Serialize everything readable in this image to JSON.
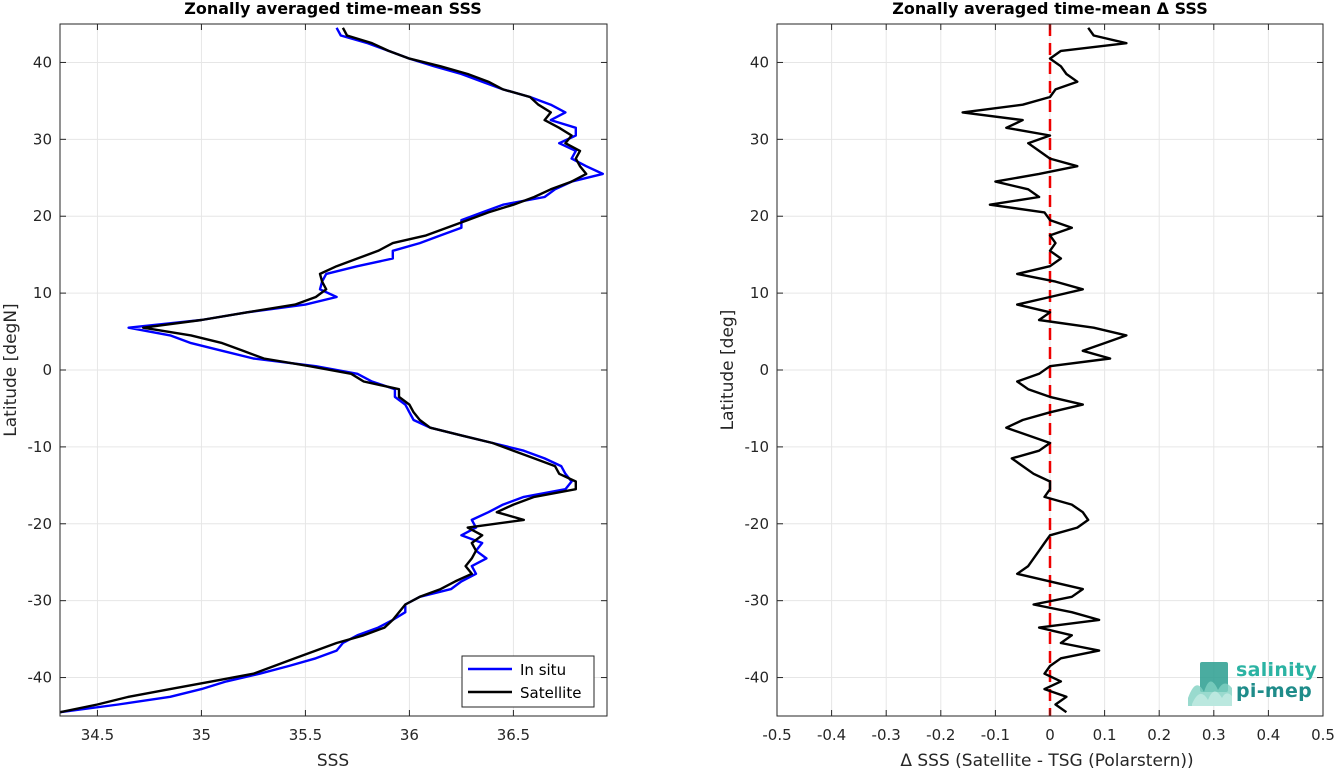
{
  "chart_data": [
    {
      "type": "line",
      "title": "Zonally averaged time-mean SSS",
      "xlabel": "SSS",
      "ylabel": "Latitude [degN]",
      "xlim": [
        34.32,
        36.95
      ],
      "ylim": [
        -45,
        45
      ],
      "x_ticks": [
        34.5,
        35,
        35.5,
        36,
        36.5
      ],
      "x_tick_labels": [
        "34.5",
        "35",
        "35.5",
        "36",
        "36.5"
      ],
      "y_ticks": [
        -40,
        -30,
        -20,
        -10,
        0,
        10,
        20,
        30,
        40
      ],
      "y_tick_labels": [
        "-40",
        "-30",
        "-20",
        "-10",
        "0",
        "10",
        "20",
        "30",
        "40"
      ],
      "grid": true,
      "legend_position": "bottom-right",
      "colors": {
        "In situ": "#0000ff",
        "Satellite": "#000000"
      },
      "series": [
        {
          "name": "In situ",
          "lat": [
            44.5,
            43.5,
            42.5,
            41.5,
            40.5,
            39.5,
            38.5,
            37.5,
            36.5,
            35.5,
            34.5,
            33.5,
            32.5,
            31.5,
            30.5,
            29.5,
            28.5,
            27.5,
            26.5,
            25.5,
            24.5,
            23.5,
            22.5,
            21.5,
            20.5,
            19.5,
            18.5,
            17.5,
            16.5,
            15.5,
            14.5,
            13.5,
            12.5,
            11.5,
            10.5,
            9.5,
            8.5,
            7.5,
            6.5,
            5.5,
            4.5,
            3.5,
            2.5,
            1.5,
            0.5,
            -0.5,
            -1.5,
            -2.5,
            -3.5,
            -4.5,
            -5.5,
            -6.5,
            -7.5,
            -8.5,
            -9.5,
            -10.5,
            -11.5,
            -12.5,
            -13.5,
            -14.5,
            -15.5,
            -16.5,
            -17.5,
            -18.5,
            -19.5,
            -20.5,
            -21.5,
            -22.5,
            -23.5,
            -24.5,
            -25.5,
            -26.5,
            -27.5,
            -28.5,
            -29.5,
            -30.5,
            -31.5,
            -32.5,
            -33.5,
            -34.5,
            -35.5,
            -36.5,
            -37.5,
            -38.5,
            -39.5,
            -40.5,
            -41.5,
            -42.5,
            -43.5,
            -44.5
          ],
          "values": [
            35.65,
            35.67,
            35.8,
            35.9,
            36.0,
            36.12,
            36.25,
            36.35,
            36.45,
            36.58,
            36.68,
            36.75,
            36.68,
            36.8,
            36.8,
            36.72,
            36.8,
            36.78,
            36.85,
            36.93,
            36.78,
            36.7,
            36.65,
            36.45,
            36.35,
            36.25,
            36.25,
            36.15,
            36.05,
            35.92,
            35.92,
            35.75,
            35.6,
            35.58,
            35.57,
            35.65,
            35.5,
            35.22,
            35.0,
            34.65,
            34.85,
            34.95,
            35.1,
            35.25,
            35.55,
            35.75,
            35.82,
            35.93,
            35.93,
            35.98,
            36.0,
            36.02,
            36.1,
            36.25,
            36.4,
            36.55,
            36.65,
            36.73,
            36.75,
            36.78,
            36.75,
            36.55,
            36.45,
            36.38,
            36.3,
            36.32,
            36.25,
            36.35,
            36.32,
            36.37,
            36.3,
            36.32,
            36.25,
            36.2,
            36.05,
            35.98,
            35.98,
            35.92,
            35.85,
            35.75,
            35.68,
            35.65,
            35.55,
            35.42,
            35.28,
            35.12,
            35.0,
            34.85,
            34.6,
            34.32
          ]
        },
        {
          "name": "Satellite",
          "lat": [
            44.5,
            43.5,
            42.5,
            41.5,
            40.5,
            39.5,
            38.5,
            37.5,
            36.5,
            35.5,
            34.5,
            33.5,
            32.5,
            31.5,
            30.5,
            29.5,
            28.5,
            27.5,
            26.5,
            25.5,
            24.5,
            23.5,
            22.5,
            21.5,
            20.5,
            19.5,
            18.5,
            17.5,
            16.5,
            15.5,
            14.5,
            13.5,
            12.5,
            11.5,
            10.5,
            9.5,
            8.5,
            7.5,
            6.5,
            5.5,
            4.5,
            3.5,
            2.5,
            1.5,
            0.5,
            -0.5,
            -1.5,
            -2.5,
            -3.5,
            -4.5,
            -5.5,
            -6.5,
            -7.5,
            -8.5,
            -9.5,
            -10.5,
            -11.5,
            -12.5,
            -13.5,
            -14.5,
            -15.5,
            -16.5,
            -17.5,
            -18.5,
            -19.5,
            -20.5,
            -21.5,
            -22.5,
            -23.5,
            -24.5,
            -25.5,
            -26.5,
            -27.5,
            -28.5,
            -29.5,
            -30.5,
            -31.5,
            -32.5,
            -33.5,
            -34.5,
            -35.5,
            -36.5,
            -37.5,
            -38.5,
            -39.5,
            -40.5,
            -41.5,
            -42.5,
            -43.5,
            -44.5
          ],
          "values": [
            35.68,
            35.7,
            35.82,
            35.9,
            36.0,
            36.15,
            36.28,
            36.38,
            36.45,
            36.58,
            36.62,
            36.68,
            36.65,
            36.72,
            36.78,
            36.75,
            36.82,
            36.8,
            36.82,
            36.85,
            36.78,
            36.68,
            36.6,
            36.5,
            36.38,
            36.28,
            36.18,
            36.08,
            35.92,
            35.85,
            35.75,
            35.65,
            35.57,
            35.58,
            35.6,
            35.55,
            35.45,
            35.22,
            35.0,
            34.72,
            34.95,
            35.1,
            35.2,
            35.3,
            35.52,
            35.72,
            35.78,
            35.95,
            35.95,
            36.0,
            36.02,
            36.05,
            36.1,
            36.25,
            36.4,
            36.5,
            36.6,
            36.7,
            36.72,
            36.8,
            36.8,
            36.6,
            36.5,
            36.42,
            36.55,
            36.28,
            36.35,
            36.3,
            36.32,
            36.3,
            36.27,
            36.3,
            36.22,
            36.15,
            36.05,
            35.98,
            35.95,
            35.92,
            35.88,
            35.78,
            35.65,
            35.55,
            35.45,
            35.35,
            35.25,
            35.05,
            34.85,
            34.65,
            34.5,
            34.32
          ]
        }
      ]
    },
    {
      "type": "line",
      "title": "Zonally averaged time-mean Δ SSS",
      "xlabel": "Δ SSS (Satellite - TSG (Polarstern))",
      "ylabel": "Latitude [deg]",
      "xlim": [
        -0.5,
        0.5
      ],
      "ylim": [
        -45,
        45
      ],
      "x_ticks": [
        -0.5,
        -0.4,
        -0.3,
        -0.2,
        -0.1,
        0,
        0.1,
        0.2,
        0.3,
        0.4,
        0.5
      ],
      "x_tick_labels": [
        "-0.5",
        "-0.4",
        "-0.3",
        "-0.2",
        "-0.1",
        "0",
        "0.1",
        "0.2",
        "0.3",
        "0.4",
        "0.5"
      ],
      "y_ticks": [
        -40,
        -30,
        -20,
        -10,
        0,
        10,
        20,
        30,
        40
      ],
      "y_tick_labels": [
        "-40",
        "-30",
        "-20",
        "-10",
        "0",
        "10",
        "20",
        "30",
        "40"
      ],
      "grid": true,
      "reference_line": {
        "x": 0,
        "style": "dashed",
        "color": "#ee0000"
      },
      "series": [
        {
          "lat": [
            44.5,
            43.5,
            42.5,
            41.5,
            40.5,
            39.5,
            38.5,
            37.5,
            36.5,
            35.5,
            34.5,
            33.5,
            32.5,
            31.5,
            30.5,
            29.5,
            28.5,
            27.5,
            26.5,
            25.5,
            24.5,
            23.5,
            22.5,
            21.5,
            20.5,
            19.5,
            18.5,
            17.5,
            16.5,
            15.5,
            14.5,
            13.5,
            12.5,
            11.5,
            10.5,
            9.5,
            8.5,
            7.5,
            6.5,
            5.5,
            4.5,
            3.5,
            2.5,
            1.5,
            0.5,
            -0.5,
            -1.5,
            -2.5,
            -3.5,
            -4.5,
            -5.5,
            -6.5,
            -7.5,
            -8.5,
            -9.5,
            -10.5,
            -11.5,
            -12.5,
            -13.5,
            -14.5,
            -15.5,
            -16.5,
            -17.5,
            -18.5,
            -19.5,
            -20.5,
            -21.5,
            -22.5,
            -23.5,
            -24.5,
            -25.5,
            -26.5,
            -27.5,
            -28.5,
            -29.5,
            -30.5,
            -31.5,
            -32.5,
            -33.5,
            -34.5,
            -35.5,
            -36.5,
            -37.5,
            -38.5,
            -39.5,
            -40.5,
            -41.5,
            -42.5,
            -43.5,
            -44.5
          ],
          "values": [
            0.07,
            0.08,
            0.14,
            0.02,
            0.0,
            0.02,
            0.03,
            0.05,
            0.01,
            0.0,
            -0.05,
            -0.16,
            -0.05,
            -0.08,
            0.0,
            -0.04,
            -0.02,
            0.0,
            0.05,
            -0.02,
            -0.1,
            -0.04,
            -0.02,
            -0.11,
            -0.01,
            0.0,
            0.04,
            0.0,
            0.01,
            0.0,
            0.02,
            0.0,
            -0.06,
            0.01,
            0.06,
            0.0,
            -0.06,
            0.0,
            -0.02,
            0.08,
            0.14,
            0.1,
            0.06,
            0.11,
            0.0,
            -0.02,
            -0.06,
            -0.04,
            0.0,
            0.06,
            0.0,
            -0.05,
            -0.08,
            -0.04,
            0.0,
            -0.02,
            -0.07,
            -0.05,
            -0.03,
            0.0,
            0.0,
            -0.01,
            0.04,
            0.06,
            0.07,
            0.05,
            0.0,
            -0.01,
            -0.02,
            -0.03,
            -0.04,
            -0.06,
            0.0,
            0.06,
            0.04,
            -0.03,
            0.04,
            0.09,
            -0.02,
            0.04,
            0.02,
            0.09,
            0.02,
            0.0,
            -0.01,
            0.02,
            -0.01,
            0.03,
            0.01,
            0.03
          ]
        }
      ]
    }
  ],
  "logo": {
    "line1": "salinity",
    "line2": "pi-mep"
  }
}
